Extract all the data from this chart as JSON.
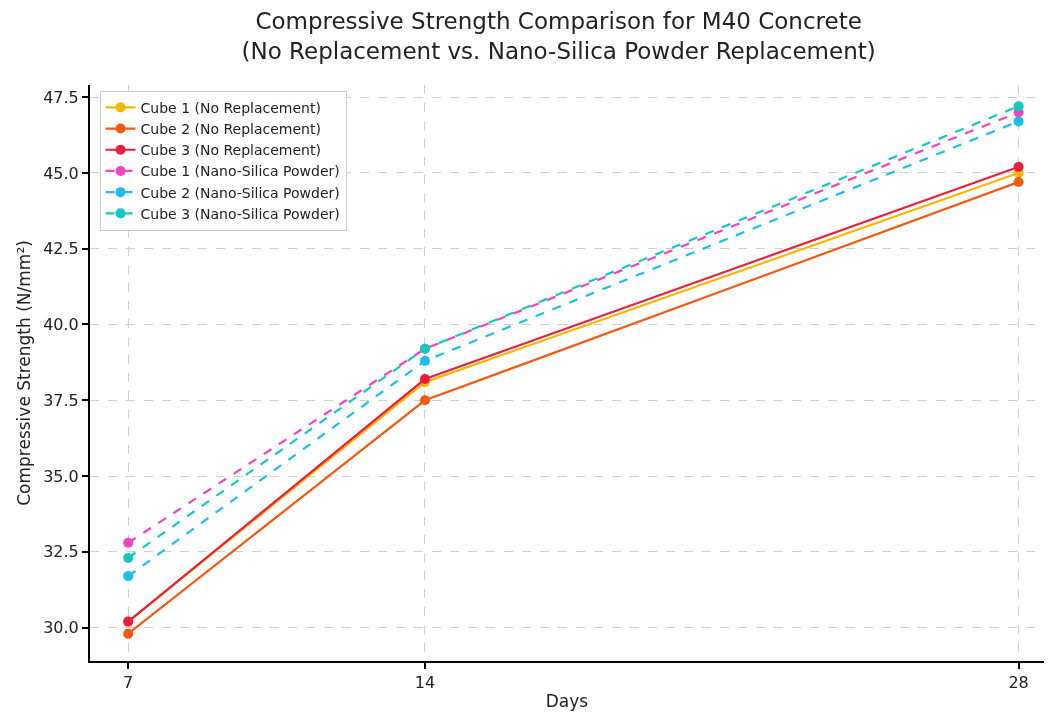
{
  "chart_data": {
    "type": "line",
    "title": "Compressive Strength Comparison for M40 Concrete\n(No Replacement vs. Nano-Silica Powder Replacement)",
    "xlabel": "Days",
    "ylabel": "Compressive Strength (N/mm²)",
    "x": [
      7,
      14,
      28
    ],
    "series": [
      {
        "name": "Cube 1 (No Replacement)",
        "color": "#f5b700",
        "values": [
          30.2,
          38.1,
          45.0
        ],
        "line_style": "solid"
      },
      {
        "name": "Cube 2 (No Replacement)",
        "color": "#f05a13",
        "values": [
          29.8,
          37.5,
          44.7
        ],
        "line_style": "solid"
      },
      {
        "name": "Cube 3 (No Replacement)",
        "color": "#e8203d",
        "values": [
          30.2,
          38.2,
          45.2
        ],
        "line_style": "solid"
      },
      {
        "name": "Cube 1 (Nano-Silica Powder)",
        "color": "#f044c0",
        "values": [
          32.8,
          39.2,
          47.0
        ],
        "line_style": "dashed"
      },
      {
        "name": "Cube 2 (Nano-Silica Powder)",
        "color": "#1ebcef",
        "values": [
          31.7,
          38.8,
          46.7
        ],
        "line_style": "dashed"
      },
      {
        "name": "Cube 3 (Nano-Silica Powder)",
        "color": "#14c8c0",
        "values": [
          32.3,
          39.2,
          47.2
        ],
        "line_style": "dashed"
      }
    ],
    "xlim": [
      6.1,
      28.6
    ],
    "xticks": [
      7,
      14,
      28
    ],
    "ylim": [
      28.9,
      47.9
    ],
    "yticks": [
      {
        "value": 30,
        "label": "30.0"
      },
      32.5,
      {
        "value": 35,
        "label": "35.0"
      },
      37.5,
      {
        "value": 40,
        "label": "40.0"
      },
      42.5,
      {
        "value": 45,
        "label": "45.0"
      },
      47.5
    ],
    "grid": true,
    "legend": "top left",
    "marker": "circle"
  }
}
